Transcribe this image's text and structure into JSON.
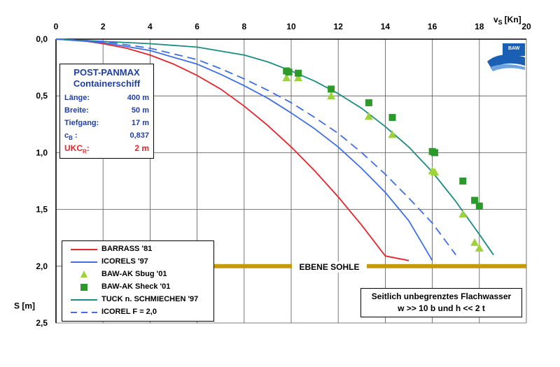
{
  "chart_data": {
    "type": "line",
    "x_label": "v",
    "x_label_sub": "S",
    "x_label_unit": "[Kn]",
    "y_label": "S [m]",
    "xlim": [
      0,
      20
    ],
    "ylim": [
      0,
      2.5
    ],
    "y_inverted": true,
    "grid": true,
    "x_ticks": [
      "0",
      "2",
      "4",
      "6",
      "8",
      "10",
      "12",
      "14",
      "16",
      "18",
      "20"
    ],
    "x_tick_values": [
      0,
      2,
      4,
      6,
      8,
      10,
      12,
      14,
      16,
      18,
      20
    ],
    "y_ticks": [
      "0,0",
      "0,5",
      "1,0",
      "1,5",
      "2,0",
      "2,5"
    ],
    "y_tick_values": [
      0,
      0.5,
      1.0,
      1.5,
      2.0,
      2.5
    ],
    "series": [
      {
        "name": "BARRASS '81",
        "style": "solid",
        "color": "#e3262d",
        "x": [
          0,
          1,
          2,
          3,
          4,
          5,
          6,
          7,
          8,
          9,
          10,
          11,
          12,
          13,
          14,
          15
        ],
        "y": [
          0,
          0.01,
          0.04,
          0.08,
          0.14,
          0.22,
          0.32,
          0.44,
          0.59,
          0.76,
          0.95,
          1.16,
          1.39,
          1.64,
          1.91,
          1.95
        ]
      },
      {
        "name": "ICORELS '97",
        "style": "solid",
        "color": "#3f6fe0",
        "x": [
          0,
          2,
          4,
          6,
          7,
          8,
          9,
          10,
          11,
          12,
          13,
          14,
          15,
          16
        ],
        "y": [
          0,
          0.03,
          0.1,
          0.22,
          0.31,
          0.41,
          0.52,
          0.65,
          0.79,
          0.95,
          1.14,
          1.35,
          1.6,
          1.95
        ]
      },
      {
        "name": "BAW-AK Sbug  '01",
        "style": "marker-triangle",
        "color": "#9ed23a",
        "x": [
          9.8,
          10.3,
          11.7,
          13.3,
          14.3,
          16.0,
          16.1,
          17.3,
          17.8,
          18.0
        ],
        "y": [
          0.34,
          0.34,
          0.5,
          0.68,
          0.84,
          1.16,
          1.17,
          1.54,
          1.79,
          1.84
        ]
      },
      {
        "name": "BAW-AK Sheck '01",
        "style": "marker-square",
        "color": "#2b9a2b",
        "x": [
          9.8,
          9.9,
          10.3,
          11.7,
          13.3,
          14.3,
          16.0,
          16.1,
          17.3,
          17.8,
          18.0
        ],
        "y": [
          0.28,
          0.29,
          0.3,
          0.44,
          0.56,
          0.69,
          0.99,
          1.0,
          1.25,
          1.42,
          1.47
        ]
      },
      {
        "name": "TUCK n. SCHMIECHEN '97",
        "style": "solid",
        "color": "#1a8c82",
        "x": [
          0,
          2,
          4,
          6,
          8,
          9,
          10,
          11,
          12,
          13,
          14,
          15,
          16,
          17,
          18,
          18.6
        ],
        "y": [
          0,
          0.02,
          0.04,
          0.07,
          0.14,
          0.2,
          0.28,
          0.37,
          0.48,
          0.61,
          0.77,
          0.95,
          1.17,
          1.43,
          1.72,
          1.9
        ]
      },
      {
        "name": "ICOREL F = 2,0",
        "style": "dashed",
        "color": "#3f6fe0",
        "x": [
          0,
          2,
          4,
          6,
          7,
          8,
          9,
          10,
          11,
          12,
          13,
          14,
          15,
          16,
          17
        ],
        "y": [
          0,
          0.02,
          0.08,
          0.18,
          0.26,
          0.35,
          0.45,
          0.56,
          0.69,
          0.83,
          1.0,
          1.19,
          1.4,
          1.62,
          1.9
        ]
      }
    ],
    "reference_line": {
      "label": "EBENE SOHLE",
      "y": 2.0,
      "x_from": 6.7,
      "x_to": 20.0,
      "color": "#c8980c"
    },
    "info_box": {
      "title1": "POST-PANMAX",
      "title2": "Containerschiff",
      "rows": [
        {
          "key": "Länge:",
          "value": "400 m"
        },
        {
          "key": "Breite:",
          "value": "50 m"
        },
        {
          "key": "Tiefgang:",
          "value": "17 m"
        },
        {
          "key": "c",
          "key_sub": "B",
          "key_tail": " :",
          "value": "0,837"
        }
      ],
      "ukc": {
        "key": "UKC",
        "key_sub": "R",
        "key_tail": ":",
        "value": "2 m"
      }
    },
    "note": {
      "line1": "Seitlich unbegrenztes Flachwasser",
      "line2": "w >> 10 b und h << 2 t"
    },
    "legend_position": "bottom-left"
  },
  "logo": {
    "text": "BAW",
    "color": "#1a5fb4"
  }
}
